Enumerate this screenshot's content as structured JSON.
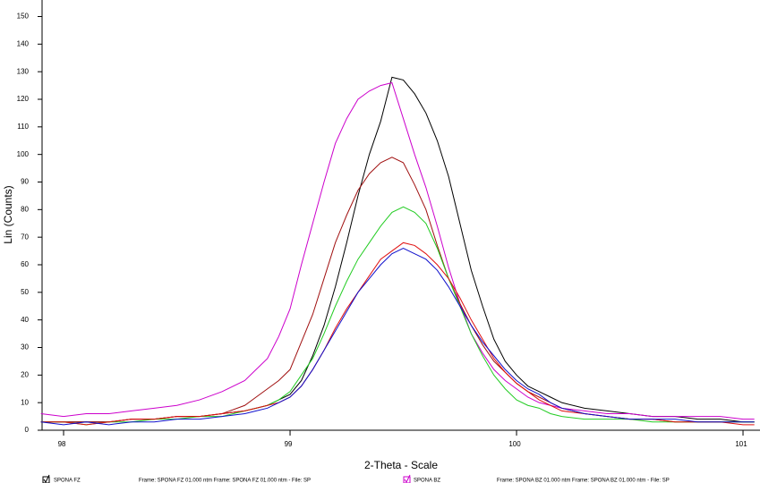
{
  "chart_data": {
    "type": "line",
    "x_label": "2-Theta - Scale",
    "y_label": "Lin (Counts)",
    "x": [
      97.9,
      98.0,
      98.1,
      98.2,
      98.3,
      98.4,
      98.5,
      98.6,
      98.7,
      98.8,
      98.85,
      98.9,
      98.95,
      99.0,
      99.05,
      99.1,
      99.15,
      99.2,
      99.25,
      99.3,
      99.35,
      99.4,
      99.45,
      99.5,
      99.55,
      99.6,
      99.65,
      99.7,
      99.75,
      99.8,
      99.85,
      99.9,
      99.95,
      100.0,
      100.05,
      100.1,
      100.15,
      100.2,
      100.3,
      100.4,
      100.5,
      100.6,
      100.7,
      100.8,
      100.9,
      101.0,
      101.05
    ],
    "series": [
      {
        "color": "#000000",
        "values": [
          3,
          3,
          3,
          3,
          4,
          4,
          5,
          5,
          6,
          7,
          8,
          9,
          11,
          13,
          18,
          27,
          38,
          52,
          68,
          85,
          100,
          112,
          128,
          127,
          122,
          115,
          105,
          92,
          75,
          58,
          45,
          33,
          25,
          20,
          16,
          14,
          12,
          10,
          8,
          7,
          6,
          5,
          5,
          4,
          4,
          3,
          3
        ]
      },
      {
        "color": "#cc00cc",
        "values": [
          6,
          5,
          6,
          6,
          7,
          8,
          9,
          11,
          14,
          18,
          22,
          26,
          34,
          44,
          60,
          75,
          90,
          104,
          113,
          120,
          123,
          125,
          126,
          113,
          100,
          88,
          74,
          59,
          46,
          35,
          28,
          22,
          18,
          15,
          12,
          10,
          9,
          8,
          7,
          6,
          6,
          5,
          5,
          5,
          5,
          4,
          4
        ]
      },
      {
        "color": "#a01010",
        "values": [
          3,
          3,
          3,
          3,
          4,
          4,
          5,
          5,
          6,
          9,
          12,
          15,
          18,
          22,
          32,
          42,
          55,
          68,
          78,
          87,
          93,
          97,
          99,
          97,
          89,
          80,
          67,
          55,
          46,
          38,
          31,
          25,
          21,
          17,
          14,
          12,
          10,
          8,
          6,
          5,
          4,
          4,
          3,
          3,
          3,
          3,
          3
        ]
      },
      {
        "color": "#22cc22",
        "values": [
          3,
          3,
          2,
          3,
          3,
          4,
          4,
          5,
          5,
          7,
          8,
          9,
          11,
          14,
          20,
          26,
          35,
          45,
          54,
          62,
          68,
          74,
          79,
          81,
          79,
          75,
          66,
          55,
          45,
          35,
          27,
          20,
          15,
          11,
          9,
          8,
          6,
          5,
          4,
          4,
          4,
          3,
          3,
          3,
          3,
          3,
          3
        ]
      },
      {
        "color": "#e01010",
        "values": [
          3,
          3,
          2,
          3,
          4,
          4,
          5,
          5,
          6,
          7,
          8,
          9,
          10,
          12,
          16,
          22,
          29,
          37,
          44,
          50,
          56,
          62,
          65,
          68,
          67,
          64,
          60,
          55,
          48,
          40,
          33,
          26,
          21,
          17,
          14,
          11,
          9,
          7,
          6,
          5,
          4,
          4,
          3,
          3,
          3,
          2,
          2
        ]
      },
      {
        "color": "#1010cc",
        "values": [
          3,
          2,
          3,
          2,
          3,
          3,
          4,
          4,
          5,
          6,
          7,
          8,
          10,
          12,
          16,
          22,
          29,
          36,
          43,
          50,
          55,
          60,
          64,
          66,
          64,
          62,
          58,
          52,
          45,
          38,
          32,
          27,
          22,
          18,
          15,
          13,
          10,
          8,
          6,
          5,
          4,
          4,
          4,
          3,
          3,
          3,
          3
        ]
      }
    ],
    "xlim": [
      97.905,
      101.075
    ],
    "ylim": [
      0,
      156
    ],
    "xticks": [
      98,
      99,
      100,
      101
    ],
    "yticks": [
      0,
      10,
      20,
      30,
      40,
      50,
      60,
      70,
      80,
      90,
      100,
      110,
      120,
      130,
      140,
      150
    ],
    "legend": [
      {
        "label": "SPONA FZ",
        "detail": "Frame: SPONA FZ 01.000 ntm Frame: SPONA FZ 01.000 ntm - File: SP",
        "color": "#000000"
      },
      {
        "label": "SPONA BZ",
        "detail": "Frame: SPONA BZ 01.000 ntm Frame: SPONA BZ 01.000 ntm - File: SP",
        "color": "#cc00cc"
      }
    ]
  }
}
